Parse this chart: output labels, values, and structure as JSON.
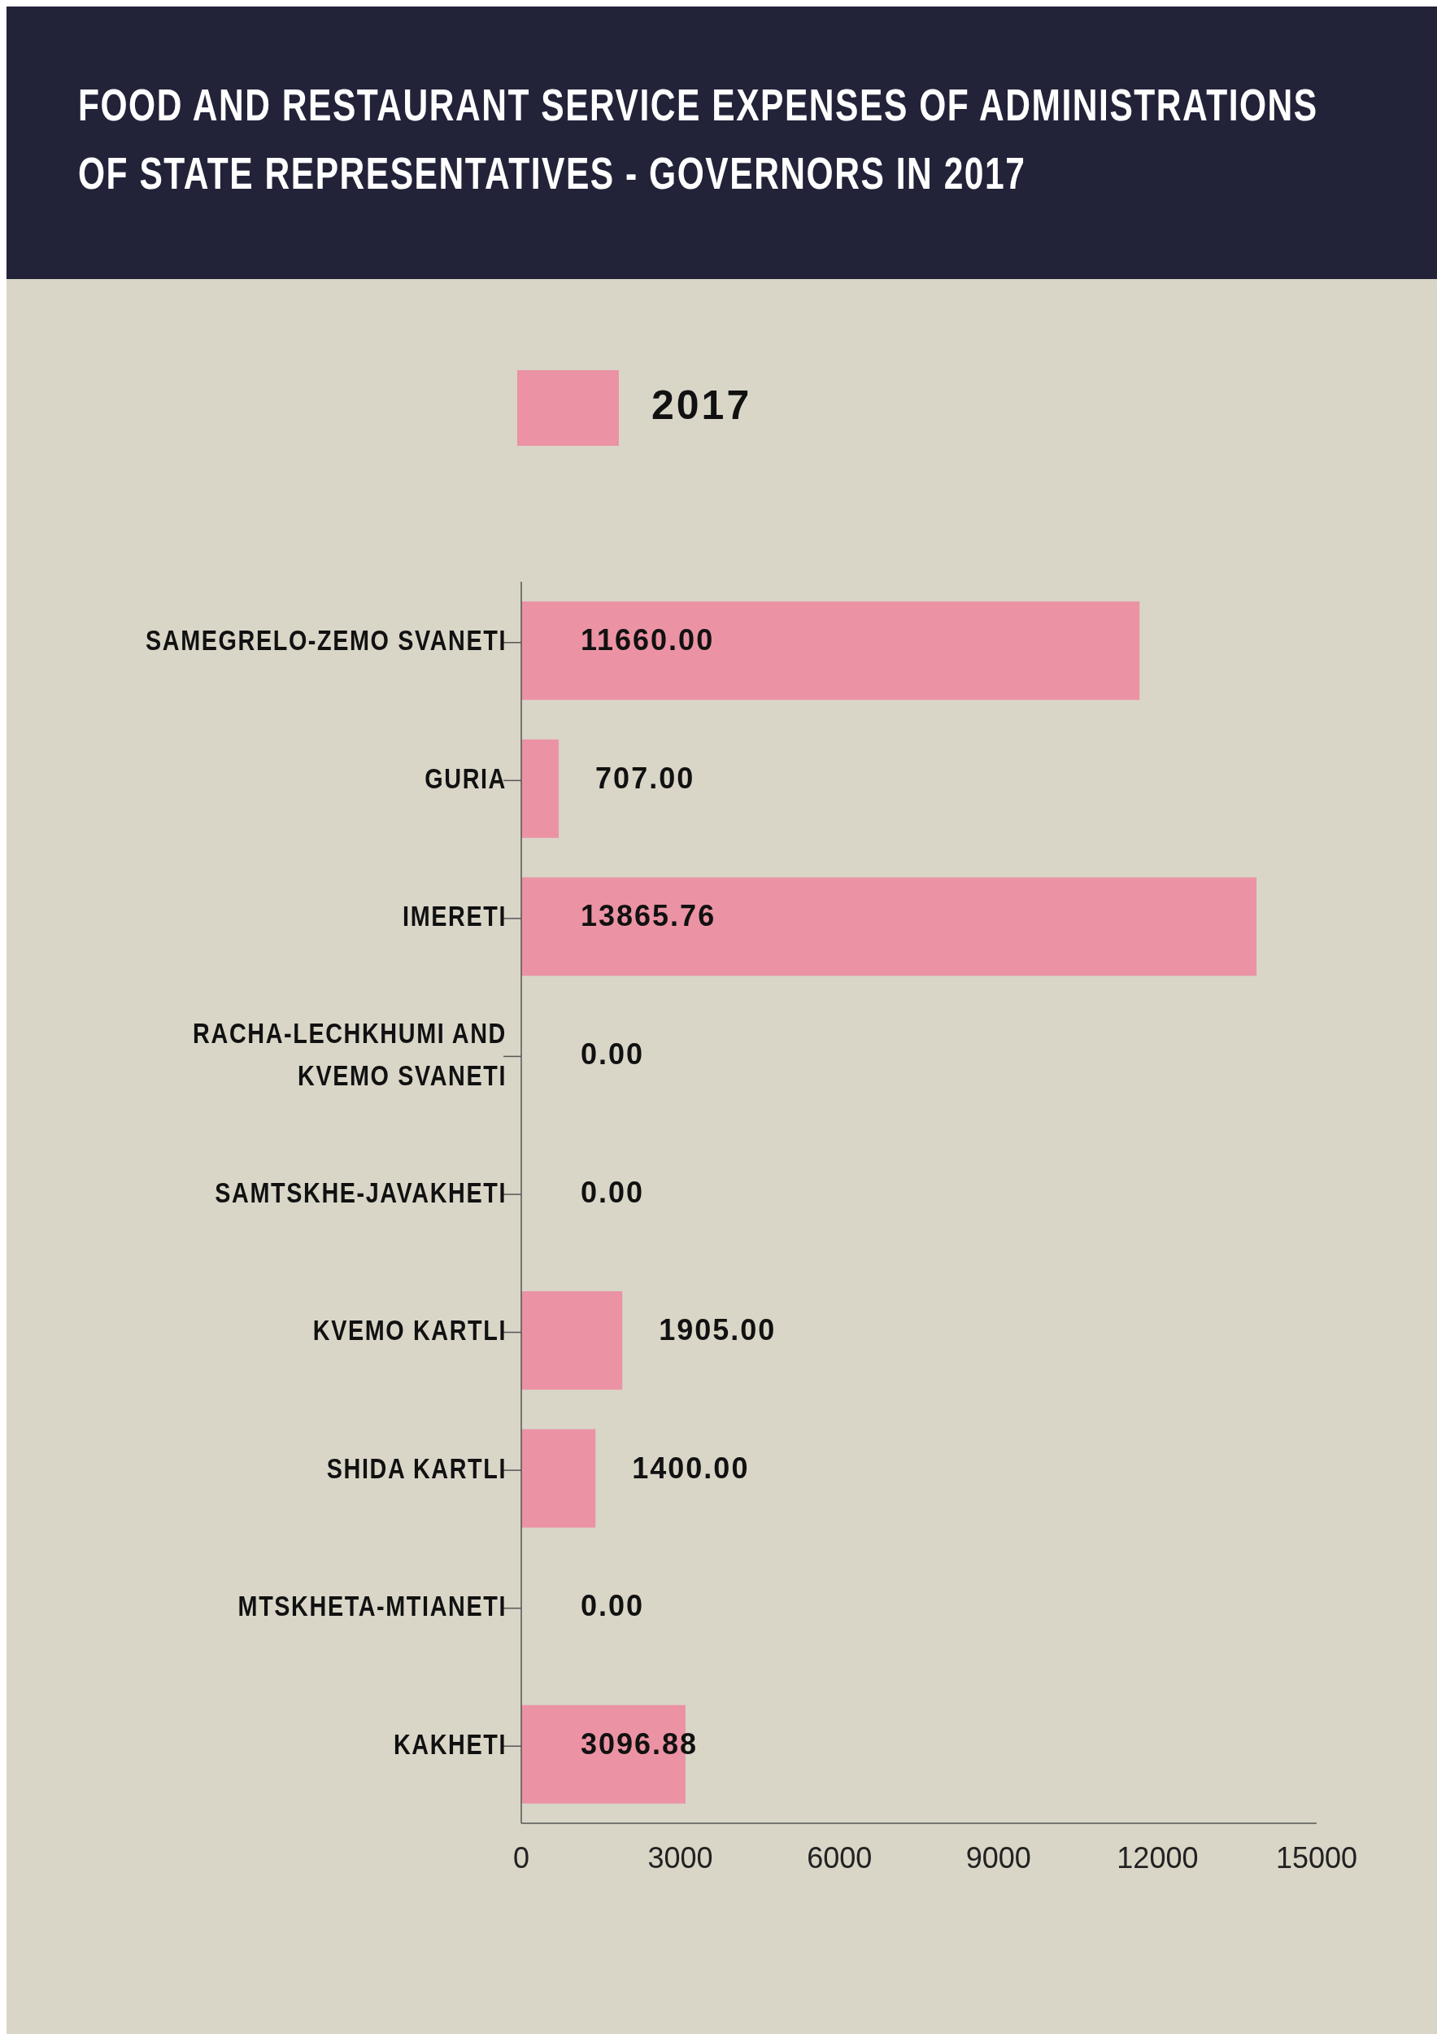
{
  "chart_data": {
    "type": "bar",
    "orientation": "horizontal",
    "title": "FOOD AND RESTAURANT SERVICE EXPENSES OF ADMINISTRATIONS OF STATE REPRESENTATIVES - GOVERNORS IN 2017",
    "categories": [
      "SAMEGRELO-ZEMO SVANETI",
      "GURIA",
      "IMERETI",
      "RACHA-LECHKHUMI AND KVEMO SVANETI",
      "SAMTSKHE-JAVAKHETI",
      "KVEMO KARTLI",
      "SHIDA KARTLI",
      "MTSKHETA-MTIANETI",
      "KAKHETI"
    ],
    "series": [
      {
        "name": "2017",
        "color": "#eb93a4",
        "values": [
          11660,
          707,
          13865.76,
          0,
          0,
          1905,
          1400,
          0,
          3096.88
        ],
        "value_labels": [
          "11660.00",
          "707.00",
          "13865.76",
          "0.00",
          "0.00",
          "1905.00",
          "1400.00",
          "0.00",
          "3096.88"
        ]
      }
    ],
    "xlim": [
      0,
      15000
    ],
    "xticks": [
      0,
      3000,
      6000,
      9000,
      12000,
      15000
    ],
    "legend": "top",
    "grid": false
  }
}
